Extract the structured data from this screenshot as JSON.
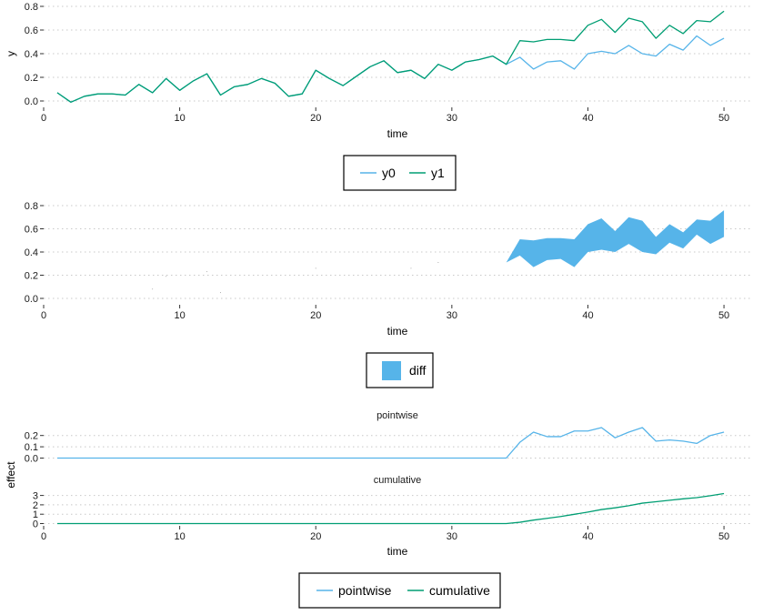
{
  "chart_data": [
    {
      "type": "line",
      "xlabel": "time",
      "ylabel": "y",
      "xlim": [
        0,
        52
      ],
      "ylim": [
        0,
        0.8
      ],
      "x_ticks": [
        0,
        10,
        20,
        30,
        40,
        50
      ],
      "y_ticks": [
        "0.0",
        "0.2",
        "0.4",
        "0.6",
        "0.8"
      ],
      "grid": "horizontal dotted",
      "legend_position": "bottom",
      "x": [
        1,
        2,
        3,
        4,
        5,
        6,
        7,
        8,
        9,
        10,
        11,
        12,
        13,
        14,
        15,
        16,
        17,
        18,
        19,
        20,
        21,
        22,
        23,
        24,
        25,
        26,
        27,
        28,
        29,
        30,
        31,
        32,
        33,
        34,
        35,
        36,
        37,
        38,
        39,
        40,
        41,
        42,
        43,
        44,
        45,
        46,
        47,
        48,
        49,
        50
      ],
      "series": [
        {
          "name": "y0",
          "color": "#56b4e9",
          "values": [
            0.07,
            -0.01,
            0.04,
            0.06,
            0.06,
            0.05,
            0.14,
            0.07,
            0.19,
            0.09,
            0.17,
            0.23,
            0.05,
            0.12,
            0.14,
            0.19,
            0.15,
            0.04,
            0.06,
            0.26,
            0.19,
            0.13,
            0.21,
            0.29,
            0.34,
            0.24,
            0.26,
            0.19,
            0.31,
            0.26,
            0.33,
            0.35,
            0.38,
            0.31,
            0.37,
            0.27,
            0.33,
            0.34,
            0.27,
            0.4,
            0.42,
            0.4,
            0.47,
            0.4,
            0.38,
            0.48,
            0.43,
            0.55,
            0.47,
            0.53
          ]
        },
        {
          "name": "y1",
          "color": "#009e73",
          "values": [
            0.07,
            -0.01,
            0.04,
            0.06,
            0.06,
            0.05,
            0.14,
            0.07,
            0.19,
            0.09,
            0.17,
            0.23,
            0.05,
            0.12,
            0.14,
            0.19,
            0.15,
            0.04,
            0.06,
            0.26,
            0.19,
            0.13,
            0.21,
            0.29,
            0.34,
            0.24,
            0.26,
            0.19,
            0.31,
            0.26,
            0.33,
            0.35,
            0.38,
            0.31,
            0.51,
            0.5,
            0.52,
            0.52,
            0.51,
            0.64,
            0.69,
            0.58,
            0.7,
            0.67,
            0.53,
            0.64,
            0.57,
            0.68,
            0.67,
            0.76
          ]
        }
      ]
    },
    {
      "type": "area",
      "xlabel": "time",
      "ylabel": "",
      "xlim": [
        0,
        52
      ],
      "ylim": [
        0,
        0.8
      ],
      "x_ticks": [
        0,
        10,
        20,
        30,
        40,
        50
      ],
      "y_ticks": [
        "0.0",
        "0.2",
        "0.4",
        "0.6",
        "0.8"
      ],
      "grid": "horizontal dotted",
      "legend_position": "bottom",
      "series": [
        {
          "name": "diff",
          "color": "#56b4e9",
          "description": "ribbon between y0 and y1",
          "lower_series": "y0",
          "upper_series": "y1"
        }
      ]
    },
    {
      "type": "line",
      "title": "pointwise",
      "xlabel": "",
      "ylabel": "effect",
      "xlim": [
        0,
        52
      ],
      "ylim": [
        -0.03,
        0.3
      ],
      "y_ticks": [
        "0.0",
        "0.1",
        "0.2"
      ],
      "grid": "horizontal dotted",
      "x": [
        1,
        2,
        3,
        4,
        5,
        6,
        7,
        8,
        9,
        10,
        11,
        12,
        13,
        14,
        15,
        16,
        17,
        18,
        19,
        20,
        21,
        22,
        23,
        24,
        25,
        26,
        27,
        28,
        29,
        30,
        31,
        32,
        33,
        34,
        35,
        36,
        37,
        38,
        39,
        40,
        41,
        42,
        43,
        44,
        45,
        46,
        47,
        48,
        49,
        50
      ],
      "series": [
        {
          "name": "pointwise",
          "color": "#56b4e9",
          "values": [
            0,
            0,
            0,
            0,
            0,
            0,
            0,
            0,
            0,
            0,
            0,
            0,
            0,
            0,
            0,
            0,
            0,
            0,
            0,
            0,
            0,
            0,
            0,
            0,
            0,
            0,
            0,
            0,
            0,
            0,
            0,
            0,
            0,
            0,
            0.14,
            0.23,
            0.19,
            0.19,
            0.24,
            0.24,
            0.27,
            0.18,
            0.23,
            0.27,
            0.15,
            0.16,
            0.15,
            0.13,
            0.2,
            0.23
          ]
        }
      ]
    },
    {
      "type": "line",
      "title": "cumulative",
      "xlabel": "time",
      "ylabel": "effect",
      "xlim": [
        0,
        52
      ],
      "ylim": [
        -0.2,
        3.8
      ],
      "x_ticks": [
        0,
        10,
        20,
        30,
        40,
        50
      ],
      "y_ticks": [
        "0",
        "1",
        "2",
        "3"
      ],
      "grid": "horizontal dotted",
      "legend_position": "bottom",
      "x": [
        1,
        2,
        3,
        4,
        5,
        6,
        7,
        8,
        9,
        10,
        11,
        12,
        13,
        14,
        15,
        16,
        17,
        18,
        19,
        20,
        21,
        22,
        23,
        24,
        25,
        26,
        27,
        28,
        29,
        30,
        31,
        32,
        33,
        34,
        35,
        36,
        37,
        38,
        39,
        40,
        41,
        42,
        43,
        44,
        45,
        46,
        47,
        48,
        49,
        50
      ],
      "series": [
        {
          "name": "cumulative",
          "color": "#009e73",
          "values": [
            0,
            0,
            0,
            0,
            0,
            0,
            0,
            0,
            0,
            0,
            0,
            0,
            0,
            0,
            0,
            0,
            0,
            0,
            0,
            0,
            0,
            0,
            0,
            0,
            0,
            0,
            0,
            0,
            0,
            0,
            0,
            0,
            0,
            0,
            0.14,
            0.37,
            0.56,
            0.75,
            0.99,
            1.23,
            1.5,
            1.68,
            1.91,
            2.18,
            2.33,
            2.49,
            2.64,
            2.77,
            2.97,
            3.2
          ]
        }
      ]
    }
  ],
  "legends": {
    "top": [
      {
        "label": "y0",
        "color": "#56b4e9",
        "kind": "line"
      },
      {
        "label": "y1",
        "color": "#009e73",
        "kind": "line"
      }
    ],
    "middle": [
      {
        "label": "diff",
        "color": "#56b4e9",
        "kind": "fill"
      }
    ],
    "bottom": [
      {
        "label": "pointwise",
        "color": "#56b4e9",
        "kind": "line"
      },
      {
        "label": "cumulative",
        "color": "#009e73",
        "kind": "line"
      }
    ]
  }
}
